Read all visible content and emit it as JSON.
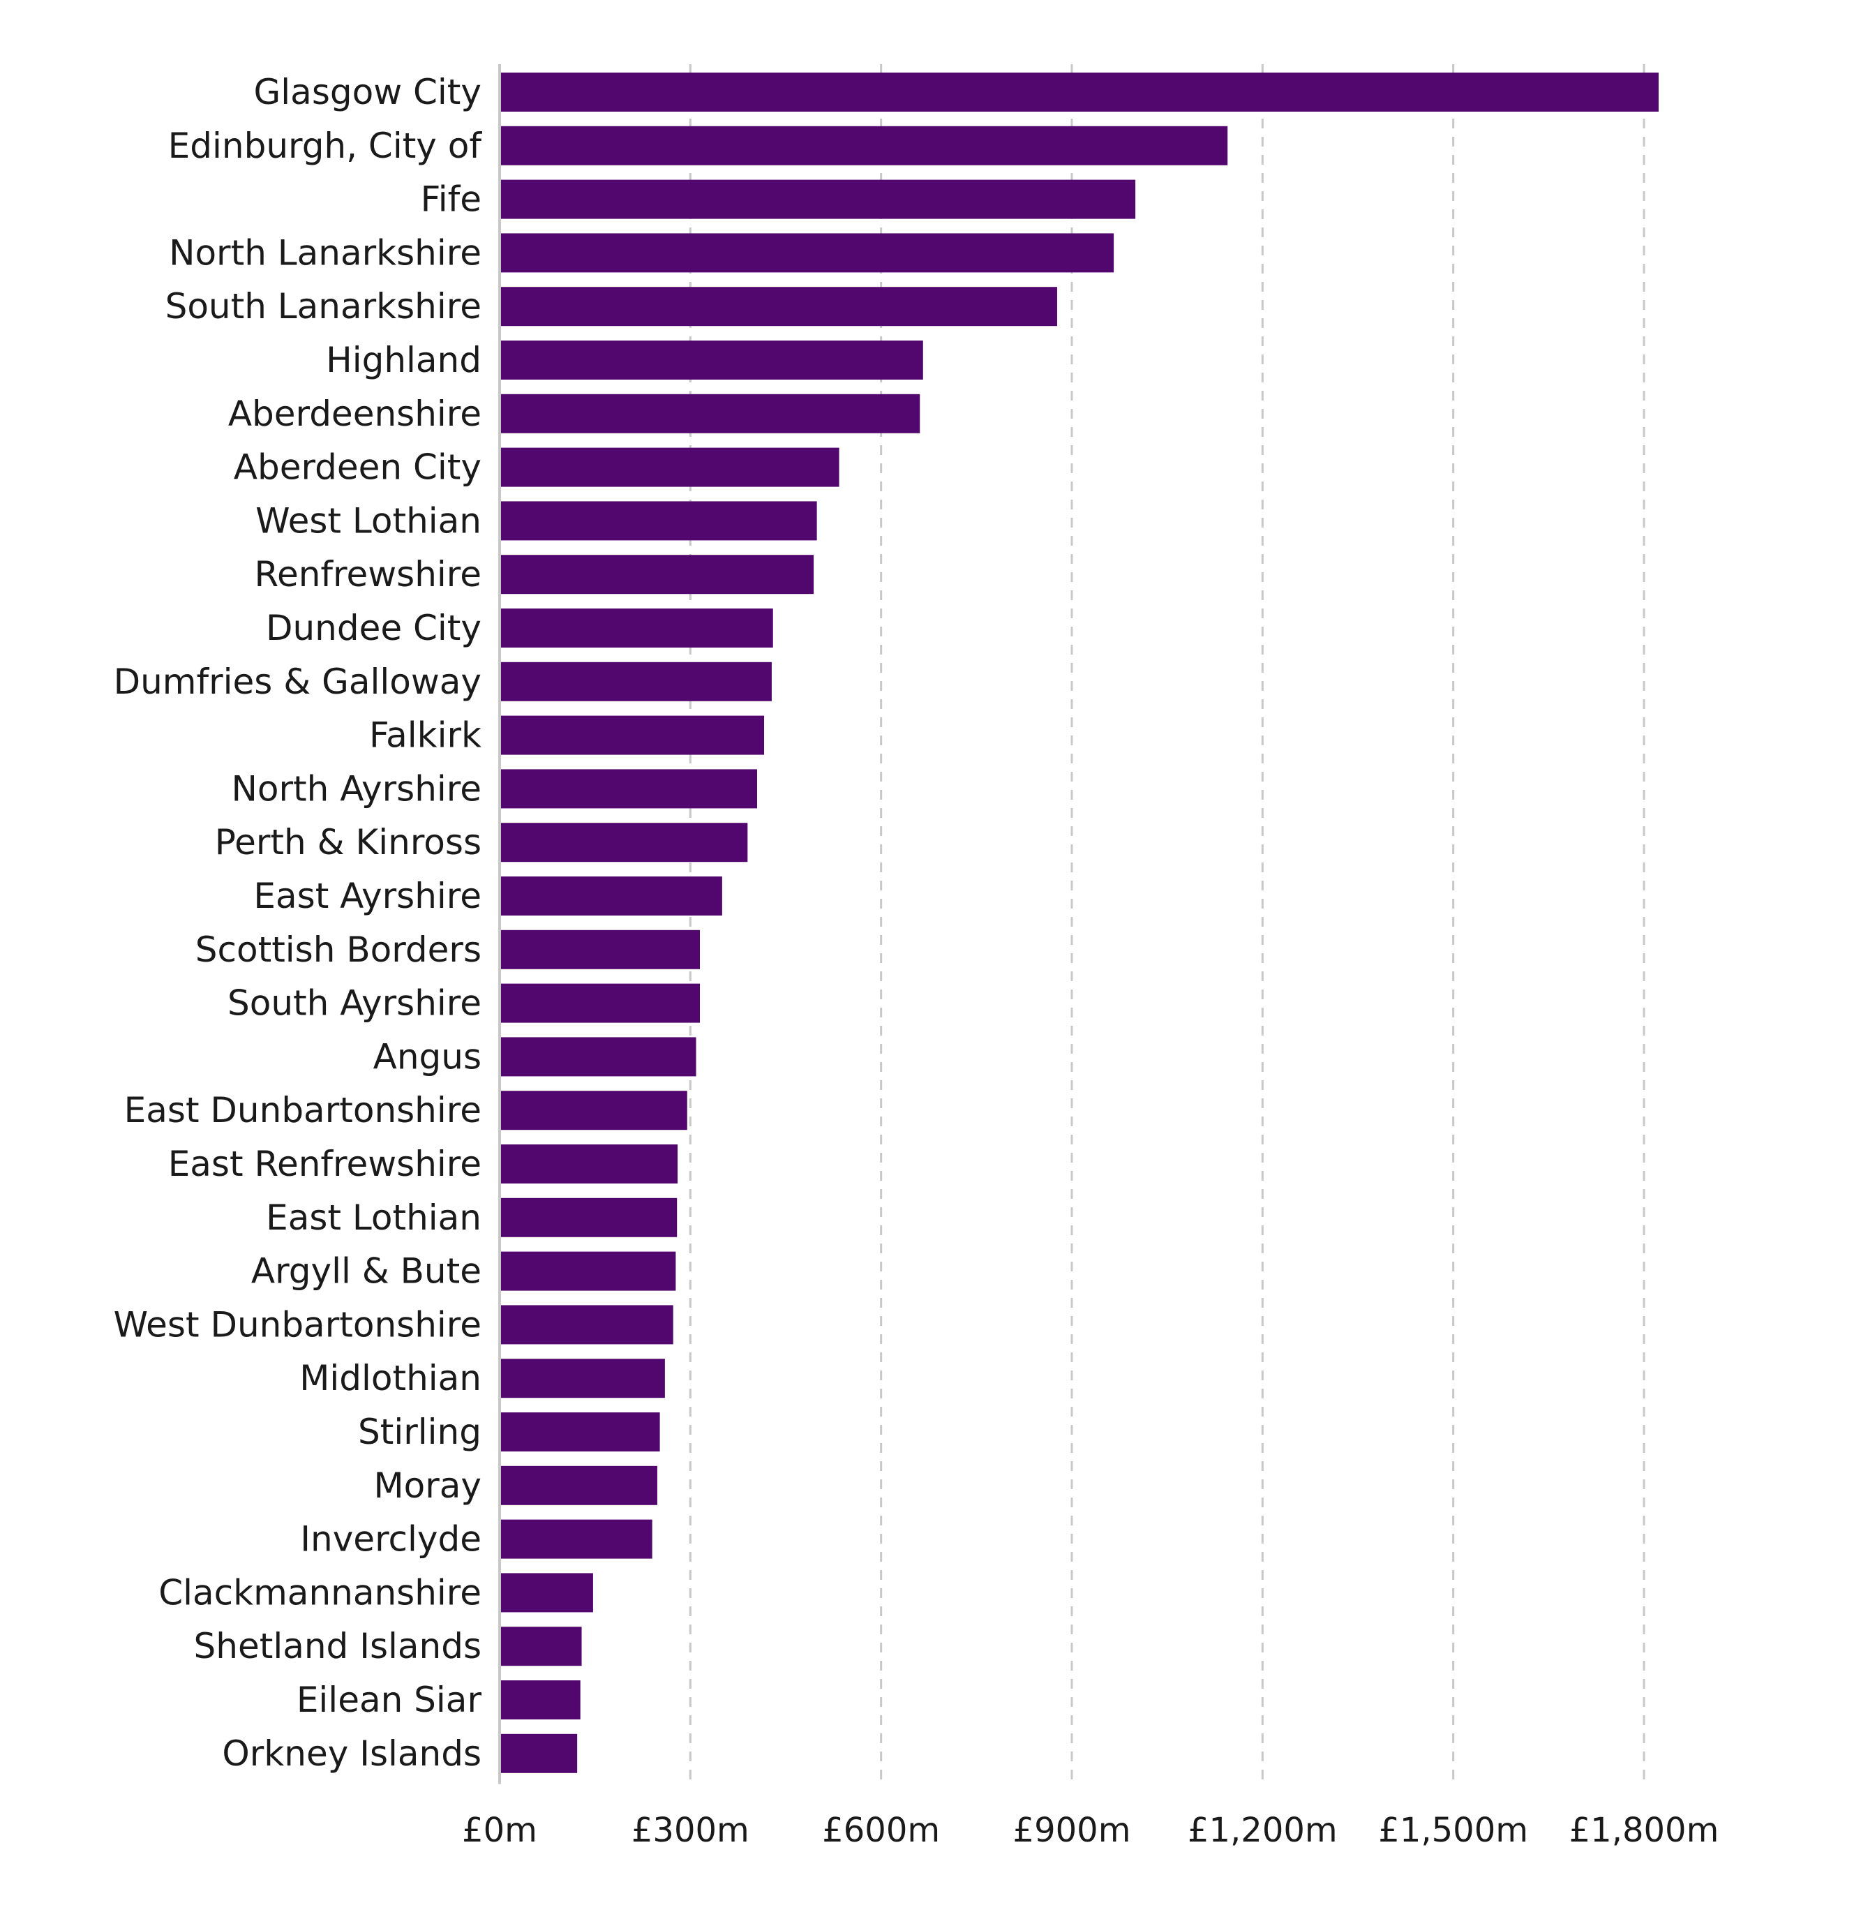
{
  "chart_data": {
    "type": "bar",
    "orientation": "horizontal",
    "title": "",
    "xlabel": "",
    "ylabel": "",
    "bar_color": "#52076f",
    "grid": true,
    "grid_style": "dashed vertical",
    "xlim": [
      0,
      1800
    ],
    "x_ticks": [
      0,
      300,
      600,
      900,
      1200,
      1500,
      1800
    ],
    "x_tick_labels": [
      "£0m",
      "£300m",
      "£600m",
      "£900m",
      "£1,200m",
      "£1,500m",
      "£1,800m"
    ],
    "categories": [
      "Glasgow City",
      "Edinburgh, City of",
      "Fife",
      "North Lanarkshire",
      "South Lanarkshire",
      "Highland",
      "Aberdeenshire",
      "Aberdeen City",
      "West Lothian",
      "Renfrewshire",
      "Dundee City",
      "Dumfries & Galloway",
      "Falkirk",
      "North Ayrshire",
      "Perth & Kinross",
      "East Ayrshire",
      "Scottish Borders",
      "South Ayrshire",
      "Angus",
      "East Dunbartonshire",
      "East Renfrewshire",
      "East Lothian",
      "Argyll & Bute",
      "West Dunbartonshire",
      "Midlothian",
      "Stirling",
      "Moray",
      "Inverclyde",
      "Clackmannanshire",
      "Shetland Islands",
      "Eilean Siar",
      "Orkney Islands"
    ],
    "values": [
      1823,
      1145,
      1000,
      966,
      877,
      666,
      661,
      534,
      499,
      494,
      430,
      428,
      416,
      405,
      390,
      350,
      315,
      315,
      309,
      295,
      280,
      279,
      277,
      273,
      260,
      252,
      248,
      240,
      147,
      129,
      127,
      122
    ]
  }
}
